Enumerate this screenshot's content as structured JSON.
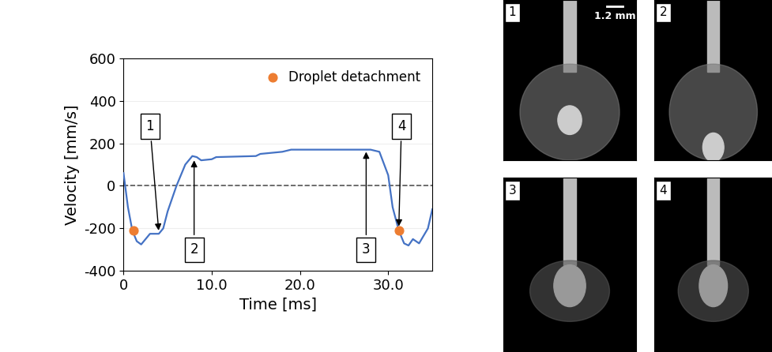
{
  "chart_data": {
    "type": "line",
    "xlabel": "Time [ms]",
    "ylabel": "Velocity [mm/s]",
    "x": [
      0,
      0.5,
      1.0,
      1.5,
      2.0,
      2.5,
      3.0,
      4.0,
      4.5,
      5.0,
      6.0,
      7.0,
      7.8,
      8.3,
      8.8,
      10.0,
      10.5,
      15.0,
      15.5,
      18.0,
      19.0,
      25.0,
      28.0,
      29.0,
      30.0,
      30.5,
      31.2,
      31.8,
      32.3,
      32.8,
      33.5,
      34.5,
      35.0
    ],
    "series": [
      {
        "name": "Velocity",
        "color": "#4472c4",
        "type": "line",
        "values": [
          60,
          -100,
          -210,
          -260,
          -275,
          -250,
          -225,
          -225,
          -200,
          -120,
          0,
          100,
          140,
          135,
          120,
          125,
          135,
          140,
          150,
          160,
          170,
          170,
          170,
          160,
          50,
          -100,
          -210,
          -270,
          -280,
          -250,
          -270,
          -200,
          -110
        ]
      },
      {
        "name": "Droplet detachment",
        "color": "#ed7d31",
        "type": "scatter",
        "marker": "o",
        "x": [
          1.1,
          31.2
        ],
        "values": [
          -210,
          -210
        ]
      }
    ],
    "xlim": [
      0,
      35
    ],
    "xticks": [
      0,
      {
        "value": 10,
        "label": "10.0"
      },
      {
        "value": 20,
        "label": "20.0"
      },
      {
        "value": 30,
        "label": "30.0"
      }
    ],
    "ylim": [
      -400,
      600
    ],
    "yticks": [
      -400,
      -200,
      0,
      200,
      400,
      600
    ],
    "grid": true,
    "legend": "upper right",
    "annotations": [
      {
        "text": "1",
        "x": 4.0,
        "y": -220,
        "text_x": 3.0,
        "text_y": 280
      },
      {
        "text": "2",
        "x": 8.0,
        "y": 130,
        "text_x": 8.0,
        "text_y": -300
      },
      {
        "text": "3",
        "x": 27.5,
        "y": 170,
        "text_x": 27.5,
        "text_y": -300
      },
      {
        "text": "4",
        "x": 31.2,
        "y": -200,
        "text_x": 31.5,
        "text_y": 280
      }
    ]
  },
  "panels": [
    {
      "label": "1",
      "scale_bar": "1.2 mm"
    },
    {
      "label": "2"
    },
    {
      "label": "3"
    },
    {
      "label": "4"
    }
  ]
}
